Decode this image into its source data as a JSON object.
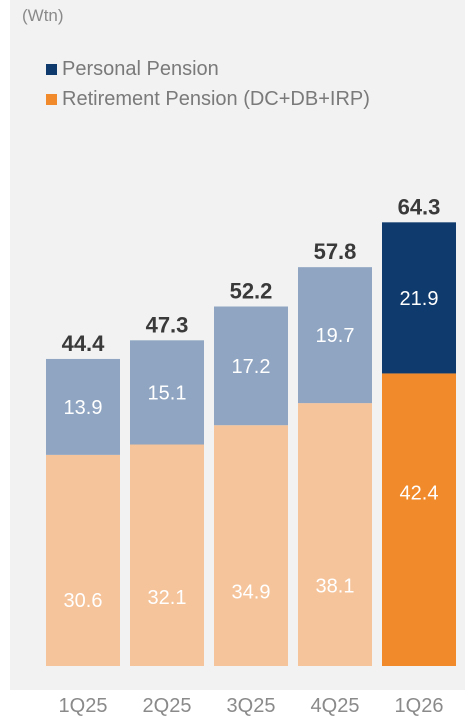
{
  "chart_data": {
    "type": "bar",
    "stacked": true,
    "unit": "(Wtn)",
    "categories": [
      "1Q25",
      "2Q25",
      "3Q25",
      "4Q25",
      "1Q26"
    ],
    "series": [
      {
        "name": "Retirement Pension (DC+DB+IRP)",
        "values": [
          30.6,
          32.1,
          34.9,
          38.1,
          42.4
        ]
      },
      {
        "name": "Personal Pension",
        "values": [
          13.9,
          15.1,
          17.2,
          19.7,
          21.9
        ]
      }
    ],
    "totals": [
      44.4,
      47.3,
      52.2,
      57.8,
      64.3
    ],
    "legend": [
      "Personal Pension",
      "Retirement Pension (DC+DB+IRP)"
    ],
    "legend_placement": "top-left",
    "highlight_category": "1Q26",
    "colors": {
      "personal_highlight": "#0e3a6d",
      "retirement_highlight": "#f18a2a",
      "personal_muted": "#8fa5c1",
      "retirement_muted": "#f5c49b",
      "panel": "#f2f2f2"
    },
    "ylim": [
      0,
      70
    ],
    "grid": false
  }
}
